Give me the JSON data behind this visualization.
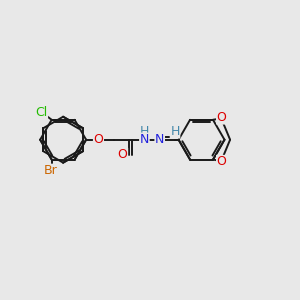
{
  "bg_color": "#e8e8e8",
  "bond_color": "#1a1a1a",
  "bond_width": 1.4,
  "atom_colors": {
    "Cl": "#22bb00",
    "Br": "#cc6600",
    "O": "#dd0000",
    "N": "#2222dd",
    "H_N": "#4488aa",
    "C": "#1a1a1a"
  },
  "font_size": 8.5,
  "figsize": [
    3.0,
    3.0
  ],
  "dpi": 100
}
